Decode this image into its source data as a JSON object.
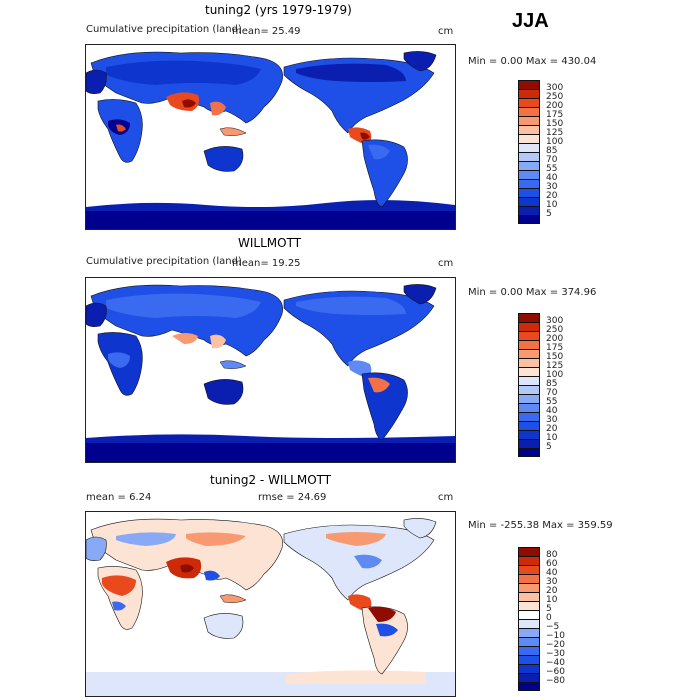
{
  "season": "JJA",
  "panels": [
    {
      "title": "tuning2 (yrs 1979-1979)",
      "subtitle": "Cumulative precipitation (land)",
      "stat_left": "mean=   25.49",
      "stat_mid": "",
      "units": "cm",
      "minmax": "Min =    0.00 Max = 430.04",
      "palette": "precip"
    },
    {
      "title": "WILLMOTT",
      "subtitle": "Cumulative precipitation (land)",
      "stat_left": "mean=   19.25",
      "stat_mid": "",
      "units": "cm",
      "minmax": "Min =    0.00 Max = 374.96",
      "palette": "precip"
    },
    {
      "title": "tuning2 - WILLMOTT",
      "subtitle": "",
      "stat_left": "mean =    6.24",
      "stat_mid": "rmse =   24.69",
      "units": "cm",
      "minmax": "Min = -255.38 Max = 359.59",
      "palette": "diff"
    }
  ],
  "chart_data": [
    {
      "type": "heatmap",
      "title": "tuning2 (yrs 1979-1979)",
      "subtitle": "Cumulative precipitation (land)",
      "units": "cm",
      "mean": 25.49,
      "min": 0.0,
      "max": 430.04,
      "colorbar_levels": [
        5,
        10,
        20,
        30,
        40,
        55,
        70,
        85,
        100,
        125,
        150,
        175,
        200,
        250,
        300
      ],
      "colorbar_colors": [
        "#00008f",
        "#0a1fb0",
        "#0f35cf",
        "#1e4fe6",
        "#3a6af0",
        "#5f8af3",
        "#87a9f6",
        "#b4c9f8",
        "#dde6fb",
        "#fde3d3",
        "#fbc1a2",
        "#f79a72",
        "#f27245",
        "#e84a1e",
        "#cc2a08",
        "#8f0c00"
      ]
    },
    {
      "type": "heatmap",
      "title": "WILLMOTT",
      "subtitle": "Cumulative precipitation (land)",
      "units": "cm",
      "mean": 19.25,
      "min": 0.0,
      "max": 374.96,
      "colorbar_levels": [
        5,
        10,
        20,
        30,
        40,
        55,
        70,
        85,
        100,
        125,
        150,
        175,
        200,
        250,
        300
      ],
      "colorbar_colors": [
        "#00008f",
        "#0a1fb0",
        "#0f35cf",
        "#1e4fe6",
        "#3a6af0",
        "#5f8af3",
        "#87a9f6",
        "#b4c9f8",
        "#dde6fb",
        "#fde3d3",
        "#fbc1a2",
        "#f79a72",
        "#f27245",
        "#e84a1e",
        "#cc2a08",
        "#8f0c00"
      ]
    },
    {
      "type": "heatmap",
      "title": "tuning2 - WILLMOTT",
      "units": "cm",
      "mean": 6.24,
      "rmse": 24.69,
      "min": -255.38,
      "max": 359.59,
      "colorbar_levels": [
        -80,
        -60,
        -40,
        -30,
        -20,
        -10,
        -5,
        0,
        5,
        10,
        20,
        30,
        40,
        60,
        80
      ],
      "colorbar_colors": [
        "#00008f",
        "#0a1fb0",
        "#0f35cf",
        "#1e4fe6",
        "#3a6af0",
        "#5f8af3",
        "#87a9f6",
        "#dde6fb",
        "#ffffff",
        "#fde3d3",
        "#fbc1a2",
        "#f79a72",
        "#f27245",
        "#e84a1e",
        "#cc2a08",
        "#8f0c00"
      ]
    }
  ]
}
